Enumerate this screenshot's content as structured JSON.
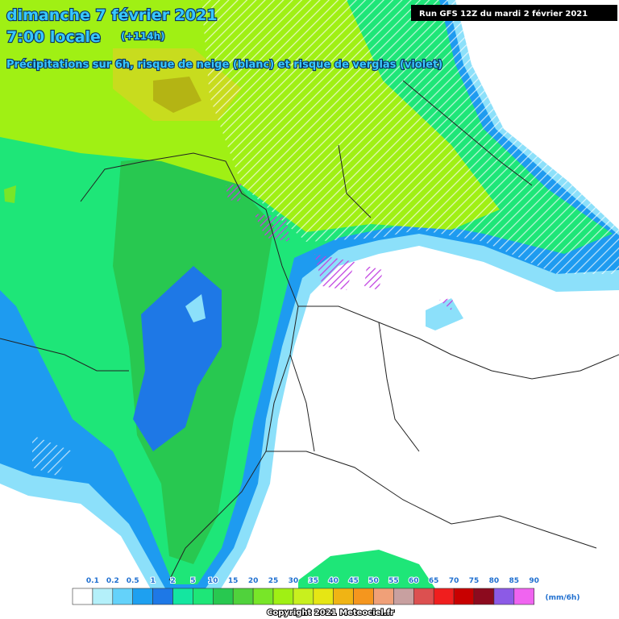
{
  "header": {
    "date": "dimanche 7 février 2021",
    "time": "7:00 locale",
    "lead": "(+114h)",
    "subtitle": "Précipitations sur 6h, risque de neige (blanc) et risque de verglas (violet)",
    "run": "Run GFS 12Z du mardi 2 février 2021"
  },
  "legend": {
    "labels": [
      "0.1",
      "0.2",
      "0.5",
      "1",
      "2",
      "5",
      "10",
      "15",
      "20",
      "25",
      "30",
      "35",
      "40",
      "45",
      "50",
      "55",
      "60",
      "65",
      "70",
      "75",
      "80",
      "85",
      "90"
    ],
    "colors": [
      "#ffffff",
      "#b4f0fa",
      "#64d2fa",
      "#1ea0f0",
      "#1e78e6",
      "#14e6a0",
      "#1ee678",
      "#28c850",
      "#50d23c",
      "#78e628",
      "#a0f014",
      "#c8f01e",
      "#e6e614",
      "#f0b414",
      "#f5961e",
      "#f0a078",
      "#c8a0a0",
      "#dc5050",
      "#f01e1e",
      "#c80000",
      "#8c0a1e",
      "#8c5ae6",
      "#f064f0"
    ],
    "unit": "(mm/6h)"
  },
  "footer": {
    "copyright": "Copyright 2021 Meteociel.fr"
  }
}
